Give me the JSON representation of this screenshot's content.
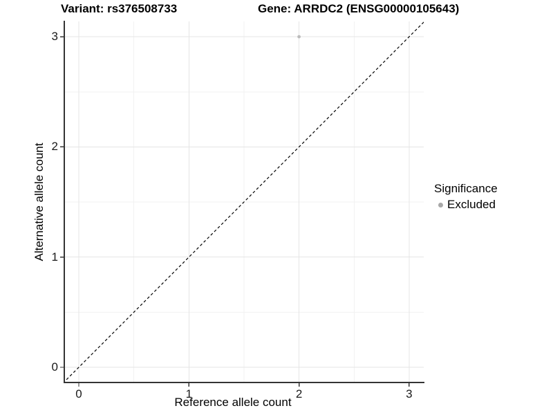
{
  "title": {
    "variant": "Variant: rs376508733",
    "gene": "Gene: ARRDC2 (ENSG00000105643)"
  },
  "axes": {
    "x": {
      "title": "Reference allele count",
      "ticks": [
        0,
        1,
        2,
        3
      ]
    },
    "y": {
      "title": "Alternative allele count",
      "ticks": [
        0,
        1,
        2,
        3
      ]
    }
  },
  "legend": {
    "title": "Significance",
    "items": [
      {
        "label": "Excluded",
        "marker_color": "#a8a8a8"
      }
    ]
  },
  "colors": {
    "point": "#bcbcbc",
    "grid_major": "#e5e5e5",
    "grid_minor": "#f2f2f2",
    "axis_line": "#333333",
    "identity_line": "#000000"
  },
  "chart_data": {
    "type": "scatter",
    "title_left": "Variant: rs376508733",
    "title_right": "Gene: ARRDC2 (ENSG00000105643)",
    "xlabel": "Reference allele count",
    "ylabel": "Alternative allele count",
    "xlim": [
      -0.15,
      3.25
    ],
    "ylim": [
      -0.15,
      3.15
    ],
    "x_ticks": [
      0,
      1,
      2,
      3
    ],
    "y_ticks": [
      0,
      1,
      2,
      3
    ],
    "minor_ticks": [
      0.5,
      1.5,
      2.5
    ],
    "grid": "major and minor light-gray gridlines on white panel",
    "legend_position": "right",
    "series": [
      {
        "name": "Excluded",
        "color": "#bcbcbc",
        "points": [
          [
            2,
            3
          ]
        ]
      }
    ],
    "annotations": [
      {
        "type": "abline",
        "slope": 1,
        "intercept": 0,
        "linetype": "dashed",
        "color": "#000000"
      }
    ]
  }
}
